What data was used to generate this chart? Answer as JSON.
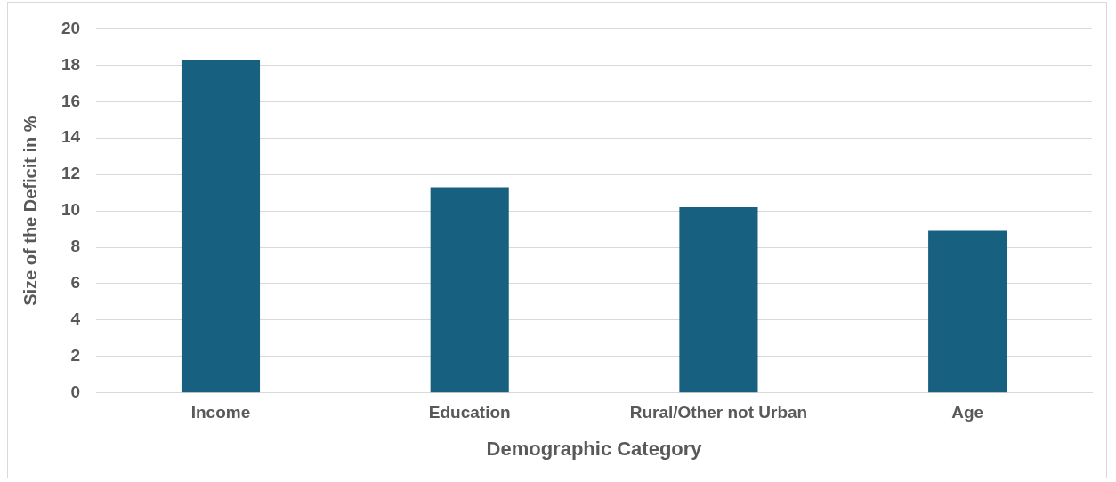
{
  "chart_data": {
    "type": "bar",
    "xlabel": "Demographic Category",
    "ylabel": "Size of the Deficit in %",
    "categories": [
      "Income",
      "Education",
      "Rural/Other not Urban",
      "Age"
    ],
    "values": [
      18.3,
      11.3,
      10.2,
      8.9
    ],
    "color": "#17607f",
    "ylim": [
      0,
      20
    ],
    "yticks": [
      0,
      2,
      4,
      6,
      8,
      10,
      12,
      14,
      16,
      18,
      20
    ],
    "grid": "y"
  }
}
